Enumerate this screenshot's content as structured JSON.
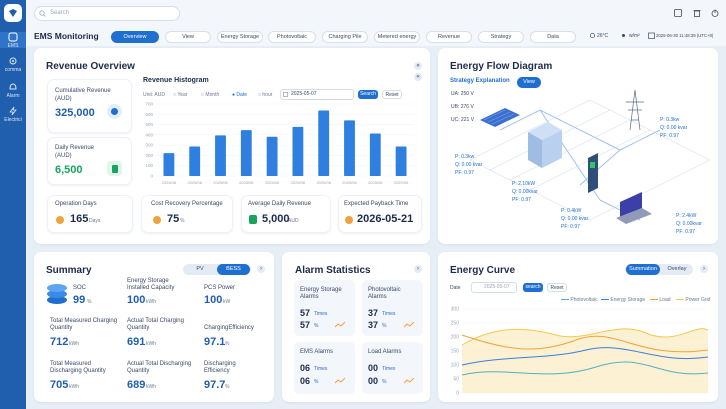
{
  "sidebar": {
    "items": [
      {
        "label": "EMS",
        "icon": "dashboard-icon"
      },
      {
        "label": "comma",
        "icon": "gear-icon"
      },
      {
        "label": "Alarm",
        "icon": "bell-icon"
      },
      {
        "label": "Electrici",
        "icon": "lightning-icon"
      }
    ]
  },
  "topbar": {
    "search_placeholder": "Search"
  },
  "menubar": {
    "brand": "EMS Monitoring",
    "tabs": [
      "Overview",
      "View",
      "Energy Storage",
      "Photovoltaic",
      "Charging Pile",
      "Metered energy",
      "Revenue",
      "Strategy",
      "Data"
    ],
    "temperature": "26°C",
    "irradiance": "w/m²",
    "datetime": "2025-06-30 11:48:39 (UTC+8)"
  },
  "revenue": {
    "title": "Revenue Overview",
    "cumulative_label": "Cumulative Revenue\n(AUD)",
    "cumulative_value": "325,000",
    "daily_label": "Daily Revenue\n(AUD)",
    "daily_value": "6,500",
    "histogram_title": "Revenue Histogram",
    "unit_label": "Unit: AUD",
    "periods": [
      "Year",
      "Month",
      "Date",
      "hour"
    ],
    "date_value": "2025-05-07",
    "search_btn": "Search",
    "reset_btn": "Reset",
    "operation_days_label": "Operation Days",
    "operation_days_value": "165",
    "operation_days_unit": "Days",
    "cost_recovery_label": "Cost Recovery Percentage",
    "cost_recovery_value": "75",
    "cost_recovery_unit": "%",
    "avg_daily_label": "Average Daily Revenue",
    "avg_daily_value": "5,000",
    "avg_daily_unit": "AUD",
    "payback_label": "Expected Payback Time",
    "payback_value": "2026-05-21"
  },
  "chart_data": {
    "type": "bar",
    "categories": [
      "2025/06",
      "2025/06",
      "2025/06",
      "2025/06",
      "2025/06",
      "2025/06",
      "2025/06",
      "2025/06",
      "2025/06",
      "2025/06"
    ],
    "values": [
      35,
      45,
      62,
      70,
      60,
      75,
      100,
      85,
      65,
      45
    ],
    "yticks": [
      "700",
      "600",
      "500",
      "400",
      "300",
      "200",
      "100",
      "0"
    ],
    "ylim": [
      0,
      110
    ],
    "xlabel": "",
    "ylabel": "",
    "title": ""
  },
  "energy_flow": {
    "title": "Energy Flow Diagram",
    "strategy_label": "Strategy Explanation",
    "view_btn": "View",
    "phase": [
      "UA: 250 V",
      "UB: 276 V",
      "UC: 221 V"
    ],
    "readings": [
      {
        "p": "P: 0.3kw",
        "q": "Q: 0.00 kvar",
        "pf": "PF: 0.97"
      },
      {
        "p": "P: 0.3kw",
        "q": "Q: 0.00 kvar",
        "pf": "PF: 0.97"
      },
      {
        "p": "P: 2.10kW",
        "q": "Q: 0.00kvar",
        "pf": "PF: 0.97"
      },
      {
        "p": "P: 0.4kW",
        "q": "Q: 0.00 kvar",
        "pf": "PF: 0.97"
      },
      {
        "p": "P: 2.4kW",
        "q": "Q: 0.00kvar",
        "pf": "PF: 0.97"
      }
    ]
  },
  "summary": {
    "title": "Summary",
    "toggle": [
      "PV",
      "BESS"
    ],
    "soc_label": "SOC",
    "soc_value": "99",
    "soc_unit": "%",
    "capacity_label": "Energy Storage Installed Capacity",
    "capacity_value": "100",
    "capacity_unit": "kWh",
    "pcs_label": "PCS Power",
    "pcs_value": "100",
    "pcs_unit": "kW",
    "tm_charge_label": "Total Measured Charging Quantity",
    "tm_charge_value": "712",
    "tm_charge_unit": "kWh",
    "at_charge_label": "Actual Total Charging Quantity",
    "at_charge_value": "691",
    "at_charge_unit": "kWh",
    "ch_eff_label": "ChargingEfficiency",
    "ch_eff_value": "97.1",
    "ch_eff_unit": "%",
    "tm_dis_label": "Total Measured Discharging Quantity",
    "tm_dis_value": "705",
    "tm_dis_unit": "kWh",
    "at_dis_label": "Actual Total Discharging Quantity",
    "at_dis_value": "689",
    "at_dis_unit": "kWh",
    "dis_eff_label": "Discharging Efficiency",
    "dis_eff_value": "97.7",
    "dis_eff_unit": "%"
  },
  "alarm": {
    "title": "Alarm Statistics",
    "cards": [
      {
        "label": "Energy Storage Alarms",
        "count": "57",
        "count_unit": "Times",
        "pct": "57",
        "pct_unit": "%"
      },
      {
        "label": "Photovoltaic Alarms",
        "count": "37",
        "count_unit": "Times",
        "pct": "37",
        "pct_unit": "%"
      },
      {
        "label": "EMS Alarms",
        "count": "06",
        "count_unit": "Times",
        "pct": "06",
        "pct_unit": "%"
      },
      {
        "label": "Load Alarms",
        "count": "00",
        "count_unit": "Times",
        "pct": "00",
        "pct_unit": "%"
      }
    ]
  },
  "energy_curve": {
    "title": "Energy Curve",
    "toggle": [
      "Summation",
      "Overlay"
    ],
    "date_label": "Date",
    "date_value": "2025-05-07",
    "search_btn": "search",
    "reset_btn": "Reset",
    "legend": [
      "Photovoltaic",
      "Energy Storage",
      "Load",
      "Power Grid"
    ],
    "legend_colors": [
      "#4fb0c6",
      "#3b7dd8",
      "#f2a23a",
      "#f2c94c"
    ],
    "yticks": [
      "300",
      "250",
      "200",
      "150",
      "100",
      "50",
      "0"
    ]
  }
}
